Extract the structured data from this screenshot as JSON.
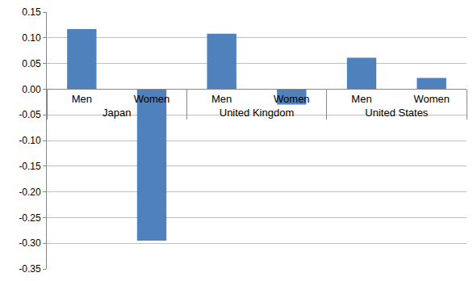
{
  "chart_data": {
    "type": "bar",
    "groups": [
      "Japan",
      "Japan",
      "United Kingdom",
      "United Kingdom",
      "United States",
      "United States"
    ],
    "categories": [
      "Men",
      "Women",
      "Men",
      "Women",
      "Men",
      "Women"
    ],
    "values": [
      0.117,
      -0.295,
      0.108,
      -0.03,
      0.061,
      0.022
    ],
    "color": "#4f81bd",
    "ylim": [
      -0.35,
      0.15
    ],
    "yticks": [
      0.15,
      {
        "value": 0.1,
        "label": "0.10"
      },
      0.05,
      {
        "value": 0,
        "label": "0.00"
      },
      -0.05,
      {
        "value": -0.1,
        "label": "-0.10"
      },
      -0.15,
      {
        "value": -0.2,
        "label": "-0.20"
      },
      -0.25,
      {
        "value": -0.3,
        "label": "-0.30"
      },
      -0.35
    ],
    "grid": true
  }
}
